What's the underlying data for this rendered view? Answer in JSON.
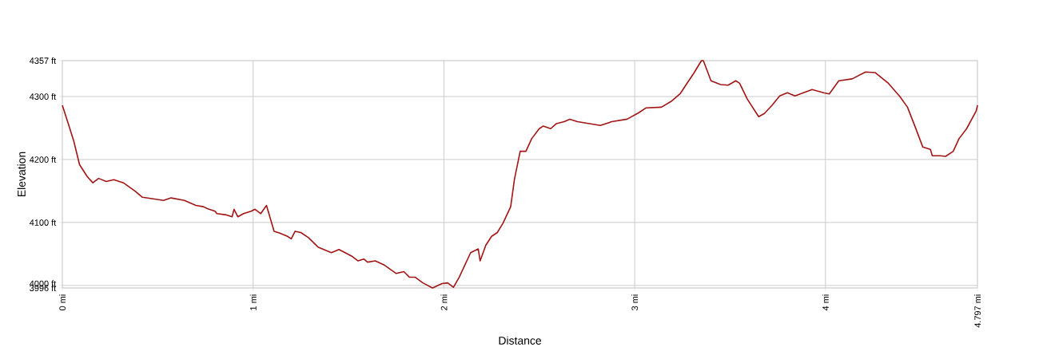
{
  "chart_data": {
    "type": "line",
    "xlabel": "Distance",
    "ylabel": "Elevation",
    "xlim": [
      0,
      4.797
    ],
    "ylim": [
      3996,
      4357
    ],
    "xticks": [
      {
        "value": 0,
        "label": "0 mi"
      },
      {
        "value": 1,
        "label": "1 mi"
      },
      {
        "value": 2,
        "label": "2 mi"
      },
      {
        "value": 3,
        "label": "3 mi"
      },
      {
        "value": 4,
        "label": "4 mi"
      },
      {
        "value": 4.797,
        "label": "4.797 mi"
      }
    ],
    "yticks": [
      {
        "value": 3996,
        "label": "3996 ft"
      },
      {
        "value": 4000,
        "label": "4000 ft"
      },
      {
        "value": 4100,
        "label": "4100 ft"
      },
      {
        "value": 4200,
        "label": "4200 ft"
      },
      {
        "value": 4300,
        "label": "4300 ft"
      },
      {
        "value": 4357,
        "label": "4357 ft"
      }
    ],
    "grid": true,
    "line_style": "solid",
    "series": [
      {
        "color": "#a31515",
        "x": [
          0,
          0.03,
          0.06,
          0.09,
          0.13,
          0.16,
          0.19,
          0.23,
          0.27,
          0.32,
          0.38,
          0.42,
          0.49,
          0.53,
          0.57,
          0.64,
          0.7,
          0.74,
          0.76,
          0.8,
          0.81,
          0.86,
          0.89,
          0.9,
          0.92,
          0.95,
          0.99,
          1.01,
          1.04,
          1.07,
          1.11,
          1.14,
          1.18,
          1.2,
          1.22,
          1.25,
          1.29,
          1.34,
          1.41,
          1.45,
          1.52,
          1.55,
          1.58,
          1.6,
          1.64,
          1.69,
          1.75,
          1.79,
          1.82,
          1.85,
          1.89,
          1.94,
          1.99,
          2.02,
          2.05,
          2.08,
          2.14,
          2.18,
          2.19,
          2.22,
          2.25,
          2.28,
          2.31,
          2.35,
          2.37,
          2.4,
          2.43,
          2.46,
          2.5,
          2.52,
          2.56,
          2.59,
          2.63,
          2.66,
          2.7,
          2.82,
          2.88,
          2.96,
          3.02,
          3.06,
          3.14,
          3.19,
          3.24,
          3.27,
          3.31,
          3.35,
          3.36,
          3.4,
          3.45,
          3.49,
          3.53,
          3.55,
          3.59,
          3.65,
          3.68,
          3.72,
          3.76,
          3.8,
          3.84,
          3.93,
          3.99,
          4.02,
          4.07,
          4.14,
          4.21,
          4.26,
          4.33,
          4.39,
          4.43,
          4.47,
          4.51,
          4.55,
          4.56,
          4.6,
          4.63,
          4.67,
          4.7,
          4.74,
          4.79,
          4.797
        ],
        "values": [
          4286,
          4258,
          4229,
          4192,
          4173,
          4163,
          4170,
          4165,
          4168,
          4163,
          4150,
          4140,
          4137,
          4135,
          4139,
          4135,
          4127,
          4125,
          4122,
          4118,
          4114,
          4112,
          4109,
          4121,
          4109,
          4114,
          4118,
          4121,
          4114,
          4127,
          4086,
          4083,
          4078,
          4074,
          4086,
          4084,
          4076,
          4061,
          4052,
          4057,
          4046,
          4039,
          4042,
          4037,
          4039,
          4032,
          4019,
          4022,
          4013,
          4013,
          4004,
          3996,
          4003,
          4004,
          3997,
          4013,
          4052,
          4058,
          4039,
          4064,
          4078,
          4084,
          4099,
          4125,
          4169,
          4213,
          4213,
          4233,
          4249,
          4253,
          4249,
          4257,
          4260,
          4264,
          4260,
          4254,
          4260,
          4264,
          4274,
          4282,
          4283,
          4292,
          4305,
          4319,
          4337,
          4357,
          4357,
          4325,
          4319,
          4318,
          4325,
          4321,
          4296,
          4268,
          4273,
          4286,
          4301,
          4306,
          4301,
          4311,
          4306,
          4304,
          4325,
          4328,
          4339,
          4338,
          4321,
          4300,
          4283,
          4252,
          4220,
          4216,
          4206,
          4206,
          4205,
          4213,
          4233,
          4249,
          4277,
          4286
        ]
      }
    ]
  }
}
